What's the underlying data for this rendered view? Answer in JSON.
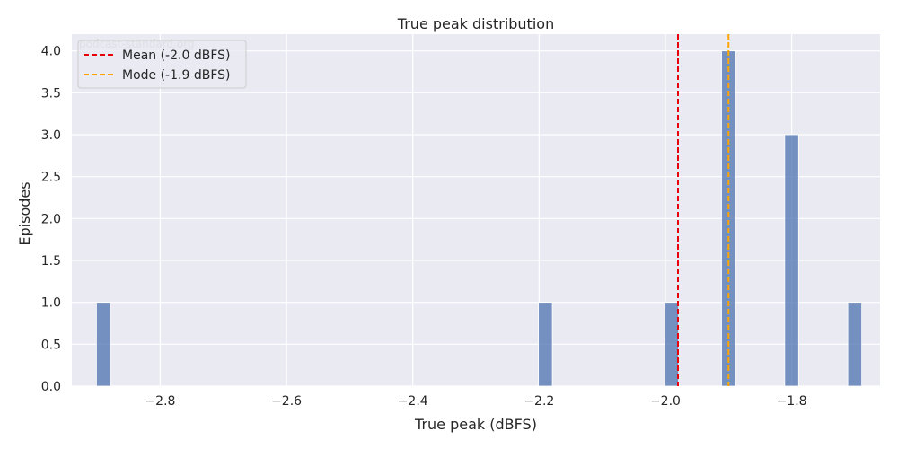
{
  "chart_data": {
    "type": "bar",
    "title": "True peak distribution",
    "xlabel": "True peak (dBFS)",
    "ylabel": "Episodes",
    "watermark": "podcast-standard.org",
    "xlim": [
      -2.94,
      -1.66
    ],
    "ylim": [
      0,
      4.2
    ],
    "grid": true,
    "bar_color": "#4c72b0",
    "bins": [
      {
        "x": -2.89,
        "value": 1
      },
      {
        "x": -2.19,
        "value": 1
      },
      {
        "x": -1.99,
        "value": 1
      },
      {
        "x": -1.9,
        "value": 4
      },
      {
        "x": -1.8,
        "value": 3
      },
      {
        "x": -1.7,
        "value": 1
      }
    ],
    "reference_lines": [
      {
        "label": "Mean (-2.0 dBFS)",
        "x": -1.98,
        "color": "#e8000b"
      },
      {
        "label": "Mode (-1.9 dBFS)",
        "x": -1.9,
        "color": "#ffa500"
      }
    ],
    "x_ticks": [
      "−2.8",
      "−2.6",
      "−2.4",
      "−2.2",
      "−2.0",
      "−1.8"
    ],
    "y_ticks": [
      "0.0",
      "0.5",
      "1.0",
      "1.5",
      "2.0",
      "2.5",
      "3.0",
      "3.5",
      "4.0"
    ],
    "legend_position": "top-left"
  }
}
